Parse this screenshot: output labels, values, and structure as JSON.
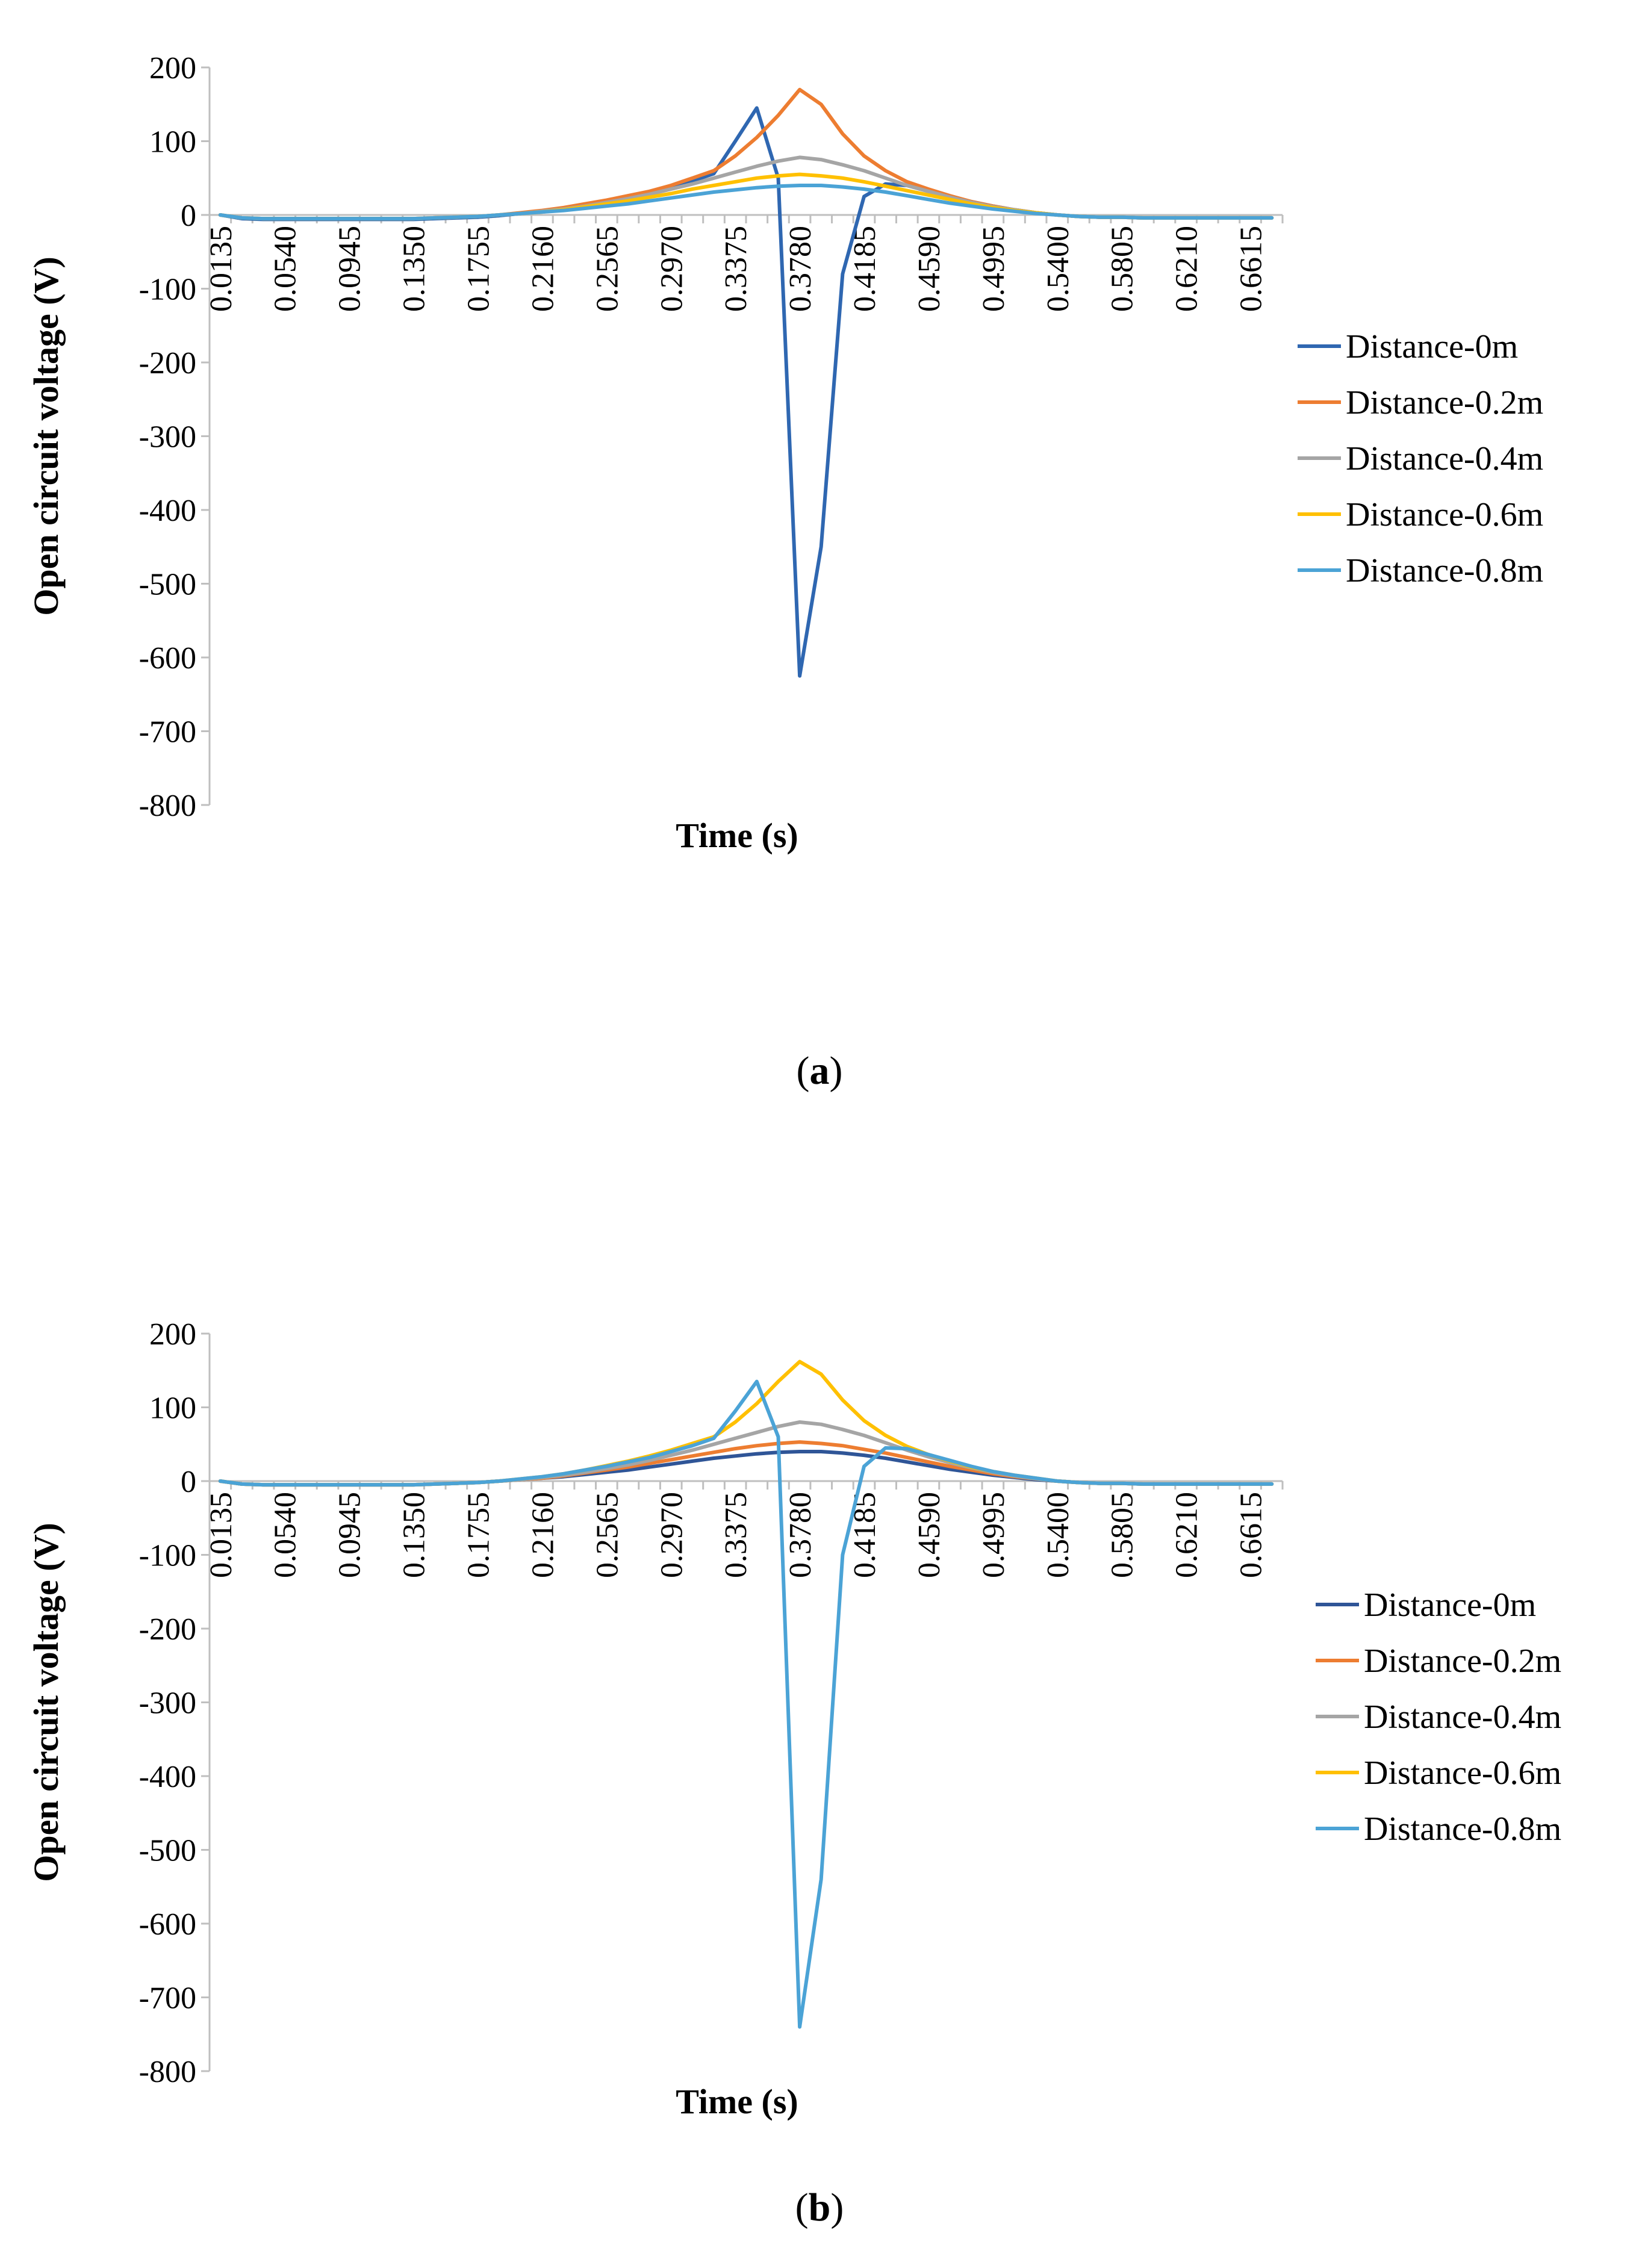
{
  "chart_data": [
    {
      "type": "line",
      "panel_label": "a",
      "ylabel": "Open circuit voltage (V)",
      "xlabel": "Time (s)",
      "ylim": [
        -800,
        200
      ],
      "yticks": [
        "200",
        "100",
        "0",
        "-100",
        "-200",
        "-300",
        "-400",
        "-500",
        "-600",
        "-700",
        "-800"
      ],
      "xtick_labels": [
        "0.0135",
        "0.0540",
        "0.0945",
        "0.1350",
        "0.1755",
        "0.2160",
        "0.2565",
        "0.2970",
        "0.3375",
        "0.3780",
        "0.4185",
        "0.4590",
        "0.4995",
        "0.5400",
        "0.5805",
        "0.6210",
        "0.6615"
      ],
      "x": [
        0.0135,
        0.027,
        0.0405,
        0.054,
        0.0675,
        0.081,
        0.0945,
        0.108,
        0.1215,
        0.135,
        0.1485,
        0.162,
        0.1755,
        0.189,
        0.2025,
        0.216,
        0.2295,
        0.243,
        0.2565,
        0.27,
        0.2835,
        0.297,
        0.3105,
        0.324,
        0.3375,
        0.351,
        0.3645,
        0.378,
        0.3915,
        0.405,
        0.4185,
        0.432,
        0.4455,
        0.459,
        0.4725,
        0.486,
        0.4995,
        0.513,
        0.5265,
        0.54,
        0.5535,
        0.567,
        0.5805,
        0.594,
        0.6075,
        0.621,
        0.6345,
        0.648,
        0.6615,
        0.675
      ],
      "series": [
        {
          "name": "Distance-0m",
          "color": "#2F67B1",
          "values": [
            0,
            -5,
            -6,
            -6,
            -6,
            -6,
            -6,
            -6,
            -6,
            -6,
            -5,
            -4,
            -3,
            -1,
            2,
            5,
            9,
            14,
            19,
            25,
            31,
            38,
            46,
            56,
            100,
            145,
            50,
            -625,
            -450,
            -80,
            25,
            42,
            40,
            32,
            25,
            18,
            12,
            7,
            3,
            0,
            -2,
            -3,
            -3,
            -4,
            -4,
            -4,
            -4,
            -4,
            -4,
            -4
          ]
        },
        {
          "name": "Distance-0.2m",
          "color": "#ED7D31",
          "values": [
            0,
            -4,
            -5,
            -5,
            -5,
            -5,
            -5,
            -5,
            -5,
            -5,
            -4,
            -3,
            -2,
            0,
            3,
            6,
            10,
            15,
            20,
            26,
            32,
            40,
            50,
            60,
            80,
            105,
            135,
            170,
            150,
            110,
            80,
            60,
            45,
            35,
            26,
            18,
            12,
            7,
            3,
            0,
            -2,
            -3,
            -3,
            -4,
            -4,
            -4,
            -4,
            -4,
            -4,
            -4
          ]
        },
        {
          "name": "Distance-0.4m",
          "color": "#A5A5A5",
          "values": [
            0,
            -4,
            -5,
            -5,
            -5,
            -5,
            -5,
            -5,
            -5,
            -5,
            -4,
            -3,
            -2,
            0,
            2,
            5,
            8,
            12,
            17,
            22,
            28,
            35,
            42,
            50,
            58,
            66,
            73,
            78,
            75,
            68,
            60,
            50,
            40,
            32,
            24,
            17,
            11,
            7,
            3,
            0,
            -2,
            -3,
            -3,
            -4,
            -4,
            -4,
            -4,
            -4,
            -4,
            -4
          ]
        },
        {
          "name": "Distance-0.6m",
          "color": "#FFC000",
          "values": [
            0,
            -4,
            -5,
            -5,
            -5,
            -5,
            -5,
            -5,
            -5,
            -5,
            -4,
            -3,
            -2,
            0,
            2,
            4,
            7,
            11,
            15,
            19,
            24,
            29,
            35,
            40,
            45,
            50,
            53,
            55,
            53,
            50,
            45,
            39,
            33,
            27,
            21,
            15,
            10,
            6,
            3,
            0,
            -2,
            -3,
            -3,
            -4,
            -4,
            -4,
            -4,
            -4,
            -4,
            -4
          ]
        },
        {
          "name": "Distance-0.8m",
          "color": "#4BA3D6",
          "values": [
            0,
            -4,
            -5,
            -5,
            -5,
            -5,
            -5,
            -5,
            -5,
            -5,
            -4,
            -3,
            -2,
            0,
            2,
            4,
            6,
            9,
            12,
            15,
            19,
            23,
            27,
            31,
            34,
            37,
            39,
            40,
            40,
            38,
            35,
            31,
            26,
            21,
            16,
            12,
            8,
            5,
            2,
            0,
            -2,
            -3,
            -3,
            -4,
            -4,
            -4,
            -4,
            -4,
            -4,
            -4
          ]
        }
      ]
    },
    {
      "type": "line",
      "panel_label": "b",
      "ylabel": "Open circuit voltage (V)",
      "xlabel": "Time (s)",
      "ylim": [
        -800,
        200
      ],
      "yticks": [
        "200",
        "100",
        "0",
        "-100",
        "-200",
        "-300",
        "-400",
        "-500",
        "-600",
        "-700",
        "-800"
      ],
      "xtick_labels": [
        "0.0135",
        "0.0540",
        "0.0945",
        "0.1350",
        "0.1755",
        "0.2160",
        "0.2565",
        "0.2970",
        "0.3375",
        "0.3780",
        "0.4185",
        "0.4590",
        "0.4995",
        "0.5400",
        "0.5805",
        "0.6210",
        "0.6615"
      ],
      "x": [
        0.0135,
        0.027,
        0.0405,
        0.054,
        0.0675,
        0.081,
        0.0945,
        0.108,
        0.1215,
        0.135,
        0.1485,
        0.162,
        0.1755,
        0.189,
        0.2025,
        0.216,
        0.2295,
        0.243,
        0.2565,
        0.27,
        0.2835,
        0.297,
        0.3105,
        0.324,
        0.3375,
        0.351,
        0.3645,
        0.378,
        0.3915,
        0.405,
        0.4185,
        0.432,
        0.4455,
        0.459,
        0.4725,
        0.486,
        0.4995,
        0.513,
        0.5265,
        0.54,
        0.5535,
        0.567,
        0.5805,
        0.594,
        0.6075,
        0.621,
        0.6345,
        0.648,
        0.6615,
        0.675
      ],
      "series": [
        {
          "name": "Distance-0m",
          "color": "#2F5597",
          "values": [
            0,
            -4,
            -5,
            -5,
            -5,
            -5,
            -5,
            -5,
            -5,
            -5,
            -4,
            -3,
            -2,
            0,
            2,
            4,
            6,
            9,
            12,
            15,
            19,
            23,
            27,
            31,
            34,
            37,
            39,
            40,
            40,
            38,
            35,
            31,
            26,
            21,
            16,
            12,
            8,
            5,
            2,
            0,
            -2,
            -3,
            -3,
            -4,
            -4,
            -4,
            -4,
            -4,
            -4,
            -4
          ]
        },
        {
          "name": "Distance-0.2m",
          "color": "#ED7D31",
          "values": [
            0,
            -4,
            -5,
            -5,
            -5,
            -5,
            -5,
            -5,
            -5,
            -5,
            -4,
            -3,
            -2,
            0,
            2,
            4,
            7,
            11,
            15,
            19,
            24,
            29,
            34,
            39,
            44,
            48,
            51,
            53,
            51,
            48,
            43,
            38,
            32,
            26,
            20,
            15,
            10,
            6,
            3,
            0,
            -2,
            -3,
            -3,
            -4,
            -4,
            -4,
            -4,
            -4,
            -4,
            -4
          ]
        },
        {
          "name": "Distance-0.4m",
          "color": "#A5A5A5",
          "values": [
            0,
            -4,
            -5,
            -5,
            -5,
            -5,
            -5,
            -5,
            -5,
            -5,
            -4,
            -3,
            -2,
            0,
            2,
            5,
            8,
            12,
            17,
            22,
            28,
            35,
            42,
            50,
            58,
            66,
            74,
            80,
            77,
            70,
            62,
            52,
            42,
            33,
            25,
            18,
            12,
            7,
            3,
            0,
            -2,
            -3,
            -3,
            -4,
            -4,
            -4,
            -4,
            -4,
            -4,
            -4
          ]
        },
        {
          "name": "Distance-0.6m",
          "color": "#FFC000",
          "values": [
            0,
            -4,
            -5,
            -5,
            -5,
            -5,
            -5,
            -5,
            -5,
            -5,
            -4,
            -3,
            -2,
            0,
            3,
            6,
            10,
            15,
            21,
            27,
            34,
            42,
            51,
            60,
            80,
            105,
            135,
            162,
            145,
            110,
            82,
            62,
            47,
            36,
            27,
            19,
            13,
            8,
            4,
            0,
            -2,
            -3,
            -3,
            -4,
            -4,
            -4,
            -4,
            -4,
            -4,
            -4
          ]
        },
        {
          "name": "Distance-0.8m",
          "color": "#4BA3D6",
          "values": [
            0,
            -4,
            -5,
            -5,
            -5,
            -5,
            -5,
            -5,
            -5,
            -5,
            -4,
            -3,
            -2,
            0,
            3,
            6,
            10,
            15,
            20,
            26,
            32,
            40,
            48,
            58,
            95,
            135,
            60,
            -740,
            -540,
            -100,
            20,
            45,
            44,
            36,
            28,
            20,
            13,
            8,
            4,
            0,
            -2,
            -3,
            -3,
            -4,
            -4,
            -4,
            -4,
            -4,
            -4,
            -4
          ]
        }
      ]
    }
  ]
}
